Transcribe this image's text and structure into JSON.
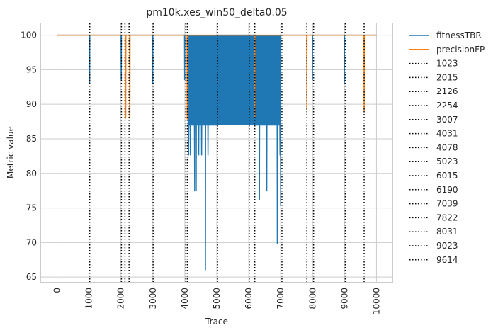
{
  "chart_data": {
    "type": "line",
    "title": "pm10k.xes_win50_delta0.05",
    "xlabel": "Trace",
    "ylabel": "Metric value",
    "xlim": [
      -500,
      10500
    ],
    "ylim": [
      64.3,
      101.7
    ],
    "xticks": [
      "0",
      "1000",
      "2000",
      "3000",
      "4000",
      "5000",
      "6000",
      "7000",
      "8000",
      "9000",
      "10000"
    ],
    "xtick_values": [
      0,
      1000,
      2000,
      3000,
      4000,
      5000,
      6000,
      7000,
      8000,
      9000,
      10000
    ],
    "yticks": [
      "65",
      "70",
      "75",
      "80",
      "85",
      "90",
      "95",
      "100"
    ],
    "ytick_values": [
      65,
      70,
      75,
      80,
      85,
      90,
      95,
      100
    ],
    "grid": true,
    "legend_position": "outside-right",
    "series": [
      {
        "name": "fitnessTBR",
        "color": "#1f77b4",
        "style": "solid",
        "points": [
          [
            0,
            100
          ],
          [
            1015,
            100
          ],
          [
            1020,
            93
          ],
          [
            1025,
            100
          ],
          [
            2005,
            100
          ],
          [
            2010,
            93.5
          ],
          [
            2015,
            100
          ],
          [
            2990,
            100
          ],
          [
            2995,
            93
          ],
          [
            3000,
            100
          ],
          [
            3990,
            100
          ],
          [
            3995,
            93.5
          ],
          [
            4000,
            100
          ],
          [
            4100,
            100
          ],
          [
            4105,
            87
          ],
          [
            4115,
            87
          ],
          [
            4120,
            82.6
          ],
          [
            4125,
            87
          ],
          [
            4170,
            87
          ],
          [
            4175,
            82.6
          ],
          [
            4180,
            87
          ],
          [
            4250,
            87
          ],
          [
            4255,
            87
          ],
          [
            4300,
            87
          ],
          [
            4310,
            77.4
          ],
          [
            4315,
            87
          ],
          [
            4350,
            87
          ],
          [
            4355,
            77.4
          ],
          [
            4360,
            87
          ],
          [
            4400,
            87
          ],
          [
            4405,
            87
          ],
          [
            4430,
            87
          ],
          [
            4435,
            82.6
          ],
          [
            4440,
            87
          ],
          [
            4520,
            87
          ],
          [
            4525,
            82.6
          ],
          [
            4530,
            87
          ],
          [
            4600,
            87
          ],
          [
            4605,
            87
          ],
          [
            4640,
            87
          ],
          [
            4645,
            66
          ],
          [
            4650,
            87
          ],
          [
            4700,
            87
          ],
          [
            4720,
            87
          ],
          [
            4725,
            82.6
          ],
          [
            4730,
            87
          ],
          [
            4800,
            87
          ],
          [
            4820,
            87
          ],
          [
            4825,
            87
          ],
          [
            5000,
            87
          ],
          [
            5000,
            100
          ],
          [
            5990,
            100
          ],
          [
            5995,
            93.5
          ],
          [
            6000,
            100
          ],
          [
            6220,
            100
          ],
          [
            6225,
            87
          ],
          [
            6240,
            87
          ],
          [
            6250,
            87
          ],
          [
            6330,
            87
          ],
          [
            6335,
            76.2
          ],
          [
            6340,
            87
          ],
          [
            6420,
            87
          ],
          [
            6430,
            87
          ],
          [
            6500,
            87
          ],
          [
            6530,
            87
          ],
          [
            6540,
            90.2
          ],
          [
            6545,
            87
          ],
          [
            6560,
            87
          ],
          [
            6565,
            77.4
          ],
          [
            6570,
            87
          ],
          [
            6600,
            87
          ],
          [
            6620,
            87
          ],
          [
            6625,
            90.2
          ],
          [
            6630,
            87
          ],
          [
            6700,
            87
          ],
          [
            6720,
            87
          ],
          [
            6740,
            87
          ],
          [
            6760,
            87
          ],
          [
            6780,
            87
          ],
          [
            6800,
            87
          ],
          [
            6820,
            87
          ],
          [
            6840,
            87
          ],
          [
            6860,
            87
          ],
          [
            6880,
            87
          ],
          [
            6890,
            87
          ],
          [
            6895,
            69.8
          ],
          [
            6900,
            87
          ],
          [
            6940,
            87
          ],
          [
            6950,
            87
          ],
          [
            6960,
            87
          ],
          [
            6975,
            87
          ],
          [
            6980,
            82.6
          ],
          [
            6985,
            87
          ],
          [
            6995,
            87
          ],
          [
            7000,
            75.3
          ],
          [
            7005,
            100
          ],
          [
            7990,
            100
          ],
          [
            7995,
            93.5
          ],
          [
            8000,
            100
          ],
          [
            8990,
            100
          ],
          [
            8995,
            93
          ],
          [
            9000,
            100
          ],
          [
            10000,
            100
          ]
        ],
        "band_lines": [
          [
            4120,
            87,
            100
          ],
          [
            4640,
            87,
            100
          ],
          [
            4980,
            87,
            100
          ],
          [
            6260,
            87,
            100
          ],
          [
            6600,
            87,
            100
          ],
          [
            6980,
            87,
            100
          ]
        ]
      },
      {
        "name": "precisionFP",
        "color": "#ff7f0e",
        "style": "solid",
        "points": [
          [
            0,
            100
          ],
          [
            2140,
            100
          ],
          [
            2145,
            88
          ],
          [
            2150,
            88
          ],
          [
            2155,
            100
          ],
          [
            2270,
            100
          ],
          [
            2275,
            88
          ],
          [
            2280,
            88
          ],
          [
            2285,
            100
          ],
          [
            4070,
            100
          ],
          [
            4075,
            87.8
          ],
          [
            4080,
            100
          ],
          [
            6180,
            100
          ],
          [
            6185,
            88
          ],
          [
            6190,
            100
          ],
          [
            7815,
            100
          ],
          [
            7820,
            89.2
          ],
          [
            7825,
            100
          ],
          [
            9610,
            100
          ],
          [
            9615,
            89
          ],
          [
            9620,
            100
          ],
          [
            10000,
            100
          ]
        ]
      }
    ],
    "vlines": [
      1023,
      2015,
      2126,
      2254,
      3007,
      4031,
      4078,
      5023,
      6015,
      6190,
      7039,
      7822,
      8031,
      9023,
      9614
    ],
    "vline_labels": [
      "1023",
      "2015",
      "2126",
      "2254",
      "3007",
      "4031",
      "4078",
      "5023",
      "6015",
      "6190",
      "7039",
      "7822",
      "8031",
      "9023",
      "9614"
    ],
    "vline_color": "#000000",
    "vline_style": "dotted"
  }
}
